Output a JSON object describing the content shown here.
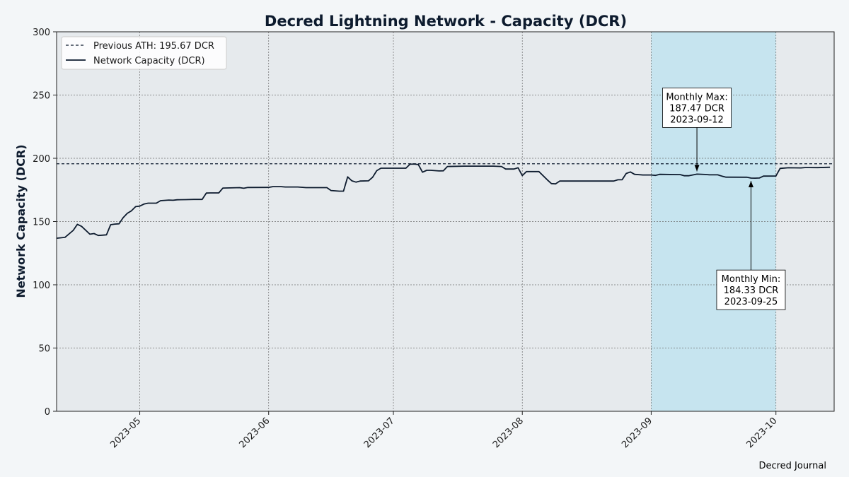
{
  "chart_data": {
    "type": "line",
    "title": "Decred Lightning Network - Capacity (DCR)",
    "xlabel": "",
    "ylabel": "Network Capacity (DCR)",
    "xlim": [
      "2023-04-11",
      "2023-10-15"
    ],
    "ylim": [
      0,
      300
    ],
    "x_ticks": [
      "2023-05",
      "2023-06",
      "2023-07",
      "2023-08",
      "2023-09",
      "2023-10"
    ],
    "y_ticks": [
      0,
      50,
      100,
      150,
      200,
      250,
      300
    ],
    "grid": true,
    "legend_placement": "upper-left",
    "reference_line": {
      "label": "Previous ATH: 195.67 DCR",
      "value": 195.67,
      "color": "#0d1b2e"
    },
    "highlight_span": {
      "start": "2023-09-01",
      "end": "2023-10-01",
      "color": "#c6e4ef"
    },
    "series": [
      {
        "name": "Network Capacity (DCR)",
        "color": "#0d1b2e",
        "points": [
          [
            "2023-04-11",
            136.8
          ],
          [
            "2023-04-13",
            137.5
          ],
          [
            "2023-04-15",
            143
          ],
          [
            "2023-04-16",
            147.8
          ],
          [
            "2023-04-17",
            146.2
          ],
          [
            "2023-04-19",
            140
          ],
          [
            "2023-04-20",
            140.5
          ],
          [
            "2023-04-21",
            139
          ],
          [
            "2023-04-22",
            139.2
          ],
          [
            "2023-04-23",
            139.5
          ],
          [
            "2023-04-24",
            147.5
          ],
          [
            "2023-04-25",
            148
          ],
          [
            "2023-04-26",
            148.2
          ],
          [
            "2023-04-27",
            153
          ],
          [
            "2023-04-28",
            156.5
          ],
          [
            "2023-04-29",
            158.5
          ],
          [
            "2023-04-30",
            161.8
          ],
          [
            "2023-05-01",
            162.2
          ],
          [
            "2023-05-02",
            163.8
          ],
          [
            "2023-05-03",
            164.5
          ],
          [
            "2023-05-05",
            164.5
          ],
          [
            "2023-05-06",
            166.5
          ],
          [
            "2023-05-08",
            167
          ],
          [
            "2023-05-09",
            166.8
          ],
          [
            "2023-05-10",
            167.2
          ],
          [
            "2023-05-12",
            167.3
          ],
          [
            "2023-05-14",
            167.5
          ],
          [
            "2023-05-16",
            167.5
          ],
          [
            "2023-05-17",
            172.5
          ],
          [
            "2023-05-18",
            172.6
          ],
          [
            "2023-05-20",
            172.6
          ],
          [
            "2023-05-21",
            176.5
          ],
          [
            "2023-05-25",
            176.8
          ],
          [
            "2023-05-26",
            176.3
          ],
          [
            "2023-05-27",
            176.9
          ],
          [
            "2023-06-01",
            177
          ],
          [
            "2023-06-02",
            177.6
          ],
          [
            "2023-06-04",
            177.6
          ],
          [
            "2023-06-05",
            177.3
          ],
          [
            "2023-06-08",
            177.3
          ],
          [
            "2023-06-10",
            176.8
          ],
          [
            "2023-06-15",
            176.8
          ],
          [
            "2023-06-16",
            174.5
          ],
          [
            "2023-06-18",
            174
          ],
          [
            "2023-06-19",
            174
          ],
          [
            "2023-06-20",
            185.3
          ],
          [
            "2023-06-21",
            182.2
          ],
          [
            "2023-06-22",
            181.2
          ],
          [
            "2023-06-23",
            182
          ],
          [
            "2023-06-25",
            182.2
          ],
          [
            "2023-06-26",
            185
          ],
          [
            "2023-06-27",
            190.2
          ],
          [
            "2023-06-28",
            192.2
          ],
          [
            "2023-06-30",
            192.2
          ],
          [
            "2023-07-04",
            192.2
          ],
          [
            "2023-07-05",
            195.3
          ],
          [
            "2023-07-06",
            195.5
          ],
          [
            "2023-07-07",
            195
          ],
          [
            "2023-07-08",
            189
          ],
          [
            "2023-07-09",
            190.5
          ],
          [
            "2023-07-10",
            190.5
          ],
          [
            "2023-07-12",
            190
          ],
          [
            "2023-07-13",
            190.1
          ],
          [
            "2023-07-14",
            193.5
          ],
          [
            "2023-07-18",
            193.8
          ],
          [
            "2023-07-25",
            193.8
          ],
          [
            "2023-07-27",
            193.5
          ],
          [
            "2023-07-28",
            191.5
          ],
          [
            "2023-07-30",
            191.5
          ],
          [
            "2023-07-31",
            192.5
          ],
          [
            "2023-08-01",
            186.3
          ],
          [
            "2023-08-02",
            189.5
          ],
          [
            "2023-08-05",
            189.5
          ],
          [
            "2023-08-07",
            183
          ],
          [
            "2023-08-08",
            180
          ],
          [
            "2023-08-09",
            179.8
          ],
          [
            "2023-08-10",
            182
          ],
          [
            "2023-08-23",
            182
          ],
          [
            "2023-08-24",
            183
          ],
          [
            "2023-08-25",
            183
          ],
          [
            "2023-08-26",
            188
          ],
          [
            "2023-08-27",
            189.2
          ],
          [
            "2023-08-28",
            187.3
          ],
          [
            "2023-08-30",
            186.8
          ],
          [
            "2023-09-01",
            186.8
          ],
          [
            "2023-09-02",
            186.5
          ],
          [
            "2023-09-03",
            187.3
          ],
          [
            "2023-09-08",
            187.1
          ],
          [
            "2023-09-09",
            186.2
          ],
          [
            "2023-09-10",
            186.2
          ],
          [
            "2023-09-12",
            187.47
          ],
          [
            "2023-09-14",
            187.2
          ],
          [
            "2023-09-15",
            186.9
          ],
          [
            "2023-09-17",
            186.9
          ],
          [
            "2023-09-18",
            185.9
          ],
          [
            "2023-09-19",
            185.1
          ],
          [
            "2023-09-24",
            185
          ],
          [
            "2023-09-25",
            184.33
          ],
          [
            "2023-09-26",
            184.3
          ],
          [
            "2023-09-27",
            184.4
          ],
          [
            "2023-09-28",
            185.9
          ],
          [
            "2023-10-01",
            186
          ],
          [
            "2023-10-02",
            192
          ],
          [
            "2023-10-04",
            192.5
          ],
          [
            "2023-10-07",
            192.4
          ],
          [
            "2023-10-08",
            192.7
          ],
          [
            "2023-10-11",
            192.6
          ],
          [
            "2023-10-14",
            192.9
          ]
        ]
      }
    ],
    "annotations": [
      {
        "lines": [
          "Monthly Max:",
          "187.47 DCR",
          "2023-09-12"
        ],
        "x": "2023-09-12",
        "y": 187.47,
        "text_y": 240
      },
      {
        "lines": [
          "Monthly Min:",
          "184.33 DCR",
          "2023-09-25"
        ],
        "x": "2023-09-25",
        "y": 184.33,
        "text_y": 96
      }
    ],
    "credit": "Decred Journal"
  }
}
